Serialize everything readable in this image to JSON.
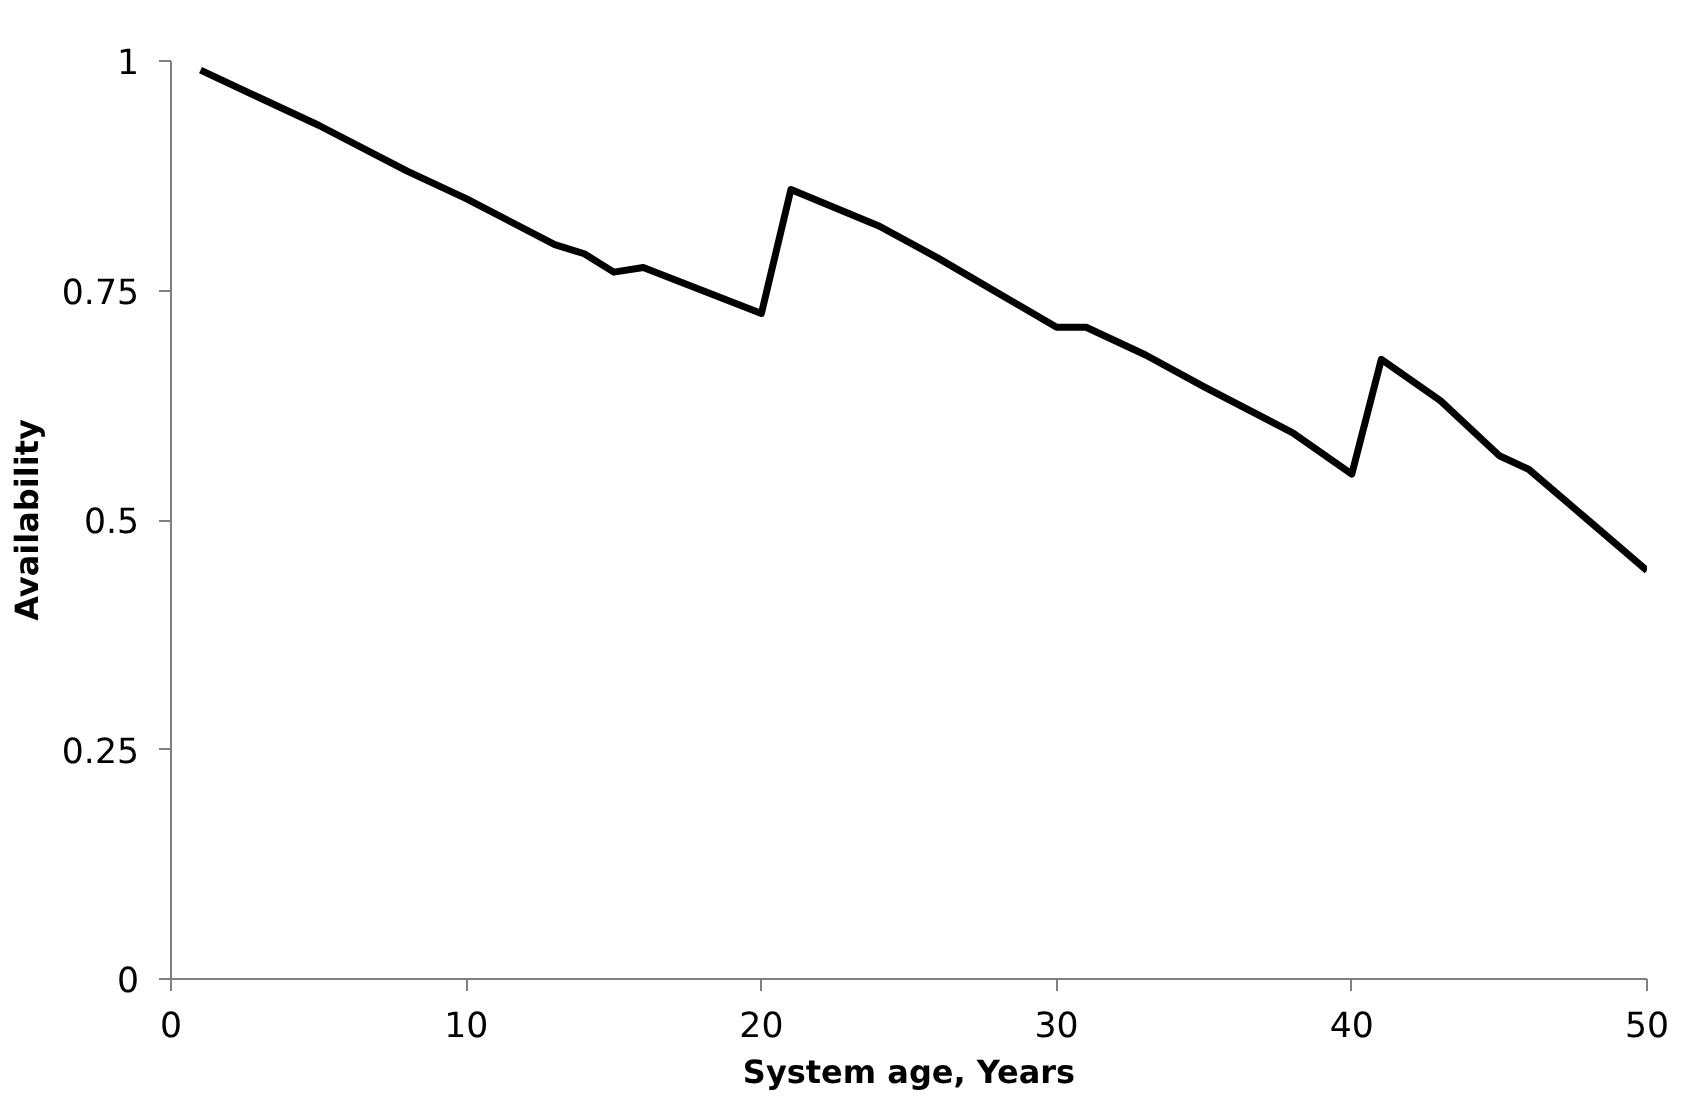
{
  "chart_data": {
    "type": "line",
    "xlabel": "System age, Years",
    "ylabel": "Availability",
    "x": [
      1,
      3,
      5,
      8,
      10,
      13,
      14,
      15,
      16,
      20,
      21,
      24,
      26,
      30,
      31,
      33,
      35,
      38,
      40,
      41,
      43,
      45,
      46,
      48,
      50
    ],
    "series": [
      {
        "color": "#000000",
        "values": [
          0.99,
          0.96,
          0.93,
          0.88,
          0.85,
          0.8,
          0.79,
          0.77,
          0.775,
          0.725,
          0.86,
          0.82,
          0.785,
          0.71,
          0.71,
          0.68,
          0.645,
          0.595,
          0.55,
          0.675,
          0.63,
          0.57,
          0.555,
          0.5,
          0.445
        ]
      }
    ],
    "xlim": [
      0,
      50
    ],
    "ylim": [
      0,
      1
    ],
    "xticks": [
      0,
      10,
      20,
      30,
      40,
      50
    ],
    "yticks": [
      0,
      0.25,
      0.5,
      0.75,
      1
    ],
    "marker": "none",
    "line_style": "solid"
  }
}
